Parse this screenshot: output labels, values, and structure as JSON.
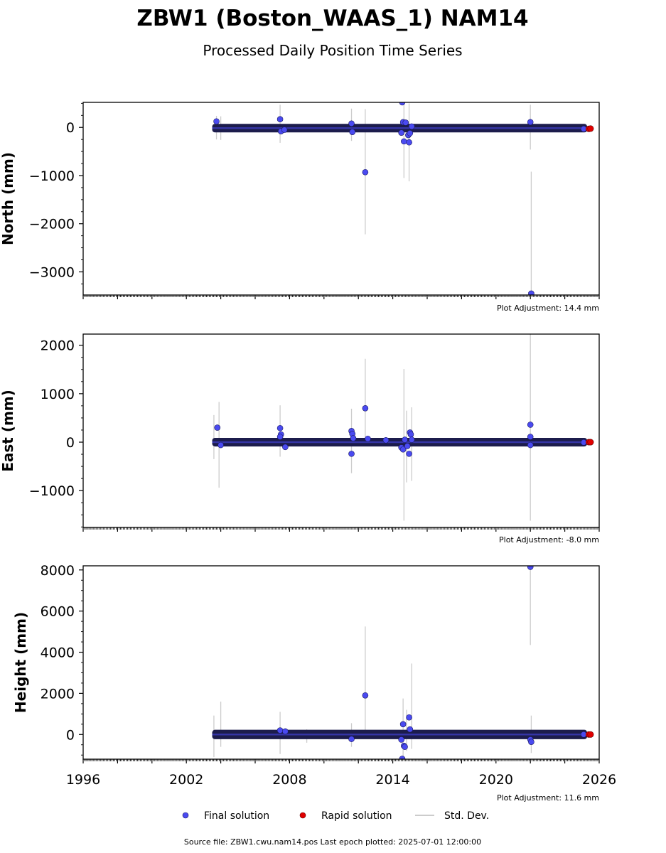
{
  "title": "ZBW1 (Boston_WAAS_1) NAM14",
  "subtitle": "Processed Daily Position Time Series",
  "footer": "Source file: ZBW1.cwu.nam14.pos  Last epoch plotted: 2025-07-01 12:00:00",
  "legend": {
    "final": "Final solution",
    "rapid": "Rapid solution",
    "std": "Std. Dev."
  },
  "colors": {
    "final": "#4a4af0",
    "rapid": "#e00000",
    "std": "#cccccc",
    "band": "#1c1c4c"
  },
  "chart_data": [
    {
      "type": "scatter",
      "ylabel": "North (mm)",
      "adjustment": "Plot Adjustment: 14.4 mm",
      "xlim": [
        1996,
        2026
      ],
      "ylim": [
        -3480,
        520
      ],
      "yticks": [
        0,
        -1000,
        -2000,
        -3000
      ],
      "ytick_labels": [
        "0",
        "−1000",
        "−2000",
        "−3000"
      ],
      "band": {
        "x_start": 2003.5,
        "x_end": 2025.3,
        "y_center": -15,
        "half_width": 30
      },
      "final": [
        {
          "x": 2003.75,
          "y": 125
        },
        {
          "x": 2007.45,
          "y": 170
        },
        {
          "x": 2007.5,
          "y": -80
        },
        {
          "x": 2007.7,
          "y": -50
        },
        {
          "x": 2011.6,
          "y": 80
        },
        {
          "x": 2011.65,
          "y": -95
        },
        {
          "x": 2012.4,
          "y": -930
        },
        {
          "x": 2014.55,
          "y": 520
        },
        {
          "x": 2014.6,
          "y": 110
        },
        {
          "x": 2014.65,
          "y": -290
        },
        {
          "x": 2014.75,
          "y": 100
        },
        {
          "x": 2014.5,
          "y": -110
        },
        {
          "x": 2014.9,
          "y": -160
        },
        {
          "x": 2014.95,
          "y": -310
        },
        {
          "x": 2015.0,
          "y": -120
        },
        {
          "x": 2015.1,
          "y": 20
        },
        {
          "x": 2022.0,
          "y": 110
        },
        {
          "x": 2022.05,
          "y": -3450
        },
        {
          "x": 2025.1,
          "y": -30
        }
      ],
      "rapid": [
        {
          "x": 2025.4,
          "y": -30
        },
        {
          "x": 2025.5,
          "y": -25
        }
      ],
      "std_dev": [
        {
          "x": 2003.75,
          "lo": -250,
          "hi": 240
        },
        {
          "x": 2004.0,
          "lo": -260,
          "hi": 230
        },
        {
          "x": 2007.45,
          "lo": -320,
          "hi": 470
        },
        {
          "x": 2011.6,
          "lo": -280,
          "hi": 390
        },
        {
          "x": 2012.4,
          "lo": -2220,
          "hi": 380
        },
        {
          "x": 2014.65,
          "lo": -1050,
          "hi": 550
        },
        {
          "x": 2014.95,
          "lo": -1120,
          "hi": 500
        },
        {
          "x": 2022.0,
          "lo": -460,
          "hi": 470
        },
        {
          "x": 2022.05,
          "lo": -3480,
          "hi": -920
        }
      ]
    },
    {
      "type": "scatter",
      "ylabel": "East (mm)",
      "adjustment": "Plot Adjustment: -8.0 mm",
      "xlim": [
        1996,
        2026
      ],
      "ylim": [
        -1760,
        2230
      ],
      "yticks": [
        2000,
        1000,
        0,
        -1000
      ],
      "ytick_labels": [
        "2000",
        "1000",
        "0",
        "−1000"
      ],
      "band": {
        "x_start": 2003.5,
        "x_end": 2025.3,
        "y_center": 0,
        "half_width": 30
      },
      "final": [
        {
          "x": 2003.8,
          "y": 300
        },
        {
          "x": 2004.0,
          "y": -60
        },
        {
          "x": 2007.45,
          "y": 290
        },
        {
          "x": 2007.5,
          "y": 160
        },
        {
          "x": 2007.45,
          "y": 110
        },
        {
          "x": 2007.75,
          "y": -100
        },
        {
          "x": 2011.6,
          "y": 230
        },
        {
          "x": 2011.65,
          "y": 170
        },
        {
          "x": 2011.7,
          "y": 80
        },
        {
          "x": 2011.6,
          "y": -240
        },
        {
          "x": 2012.4,
          "y": 700
        },
        {
          "x": 2012.55,
          "y": 70
        },
        {
          "x": 2013.6,
          "y": 40
        },
        {
          "x": 2014.5,
          "y": -110
        },
        {
          "x": 2014.6,
          "y": -150
        },
        {
          "x": 2014.7,
          "y": 50
        },
        {
          "x": 2014.85,
          "y": -80
        },
        {
          "x": 2015.0,
          "y": 200
        },
        {
          "x": 2015.05,
          "y": 160
        },
        {
          "x": 2014.95,
          "y": -240
        },
        {
          "x": 2015.1,
          "y": 50
        },
        {
          "x": 2022.0,
          "y": 360
        },
        {
          "x": 2022.0,
          "y": 110
        },
        {
          "x": 2022.0,
          "y": -60
        },
        {
          "x": 2025.1,
          "y": -5
        }
      ],
      "rapid": [
        {
          "x": 2025.4,
          "y": 0
        },
        {
          "x": 2025.5,
          "y": 0
        }
      ],
      "std_dev": [
        {
          "x": 2003.6,
          "lo": -350,
          "hi": 560
        },
        {
          "x": 2003.9,
          "lo": -940,
          "hi": 830
        },
        {
          "x": 2007.45,
          "lo": -300,
          "hi": 760
        },
        {
          "x": 2011.6,
          "lo": -640,
          "hi": 690
        },
        {
          "x": 2012.4,
          "lo": -30,
          "hi": 1720
        },
        {
          "x": 2014.65,
          "lo": -1620,
          "hi": 1510
        },
        {
          "x": 2014.8,
          "lo": -830,
          "hi": 650
        },
        {
          "x": 2015.1,
          "lo": -800,
          "hi": 720
        },
        {
          "x": 2022.0,
          "lo": -1620,
          "hi": 2230
        }
      ]
    },
    {
      "type": "scatter",
      "ylabel": "Height (mm)",
      "adjustment": "Plot Adjustment: 11.6 mm",
      "xlim": [
        1996,
        2026
      ],
      "ylim": [
        -1200,
        8200
      ],
      "yticks": [
        8000,
        6000,
        4000,
        2000,
        0
      ],
      "ytick_labels": [
        "8000",
        "6000",
        "4000",
        "2000",
        "0"
      ],
      "xticks": [
        1996,
        2002,
        2008,
        2014,
        2020,
        2026
      ],
      "xtick_labels": [
        "1996",
        "2002",
        "2008",
        "2014",
        "2020",
        "2026"
      ],
      "band": {
        "x_start": 2003.5,
        "x_end": 2025.3,
        "y_center": 0,
        "half_width": 90
      },
      "final": [
        {
          "x": 2007.45,
          "y": 200
        },
        {
          "x": 2007.75,
          "y": 150
        },
        {
          "x": 2011.6,
          "y": -220
        },
        {
          "x": 2012.4,
          "y": 1900
        },
        {
          "x": 2014.6,
          "y": 500
        },
        {
          "x": 2014.5,
          "y": -250
        },
        {
          "x": 2014.65,
          "y": -550
        },
        {
          "x": 2014.7,
          "y": -600
        },
        {
          "x": 2014.95,
          "y": 830
        },
        {
          "x": 2015.0,
          "y": 250
        },
        {
          "x": 2014.55,
          "y": -1180
        },
        {
          "x": 2022.0,
          "y": 8150
        },
        {
          "x": 2022.0,
          "y": -250
        },
        {
          "x": 2022.05,
          "y": -360
        },
        {
          "x": 2025.1,
          "y": 0
        }
      ],
      "rapid": [
        {
          "x": 2025.4,
          "y": 0
        },
        {
          "x": 2025.5,
          "y": 0
        }
      ],
      "std_dev": [
        {
          "x": 2003.6,
          "lo": -1100,
          "hi": 920
        },
        {
          "x": 2004.0,
          "lo": -600,
          "hi": 1600
        },
        {
          "x": 2007.45,
          "lo": -950,
          "hi": 1100
        },
        {
          "x": 2009.0,
          "lo": -400,
          "hi": 250
        },
        {
          "x": 2011.6,
          "lo": -600,
          "hi": 550
        },
        {
          "x": 2012.4,
          "lo": 50,
          "hi": 5250
        },
        {
          "x": 2014.6,
          "lo": -1200,
          "hi": 1750
        },
        {
          "x": 2014.8,
          "lo": -800,
          "hi": 1200
        },
        {
          "x": 2015.1,
          "lo": -700,
          "hi": 3450
        },
        {
          "x": 2022.0,
          "lo": 4350,
          "hi": 8200
        },
        {
          "x": 2022.05,
          "lo": -900,
          "hi": 920
        }
      ]
    }
  ]
}
